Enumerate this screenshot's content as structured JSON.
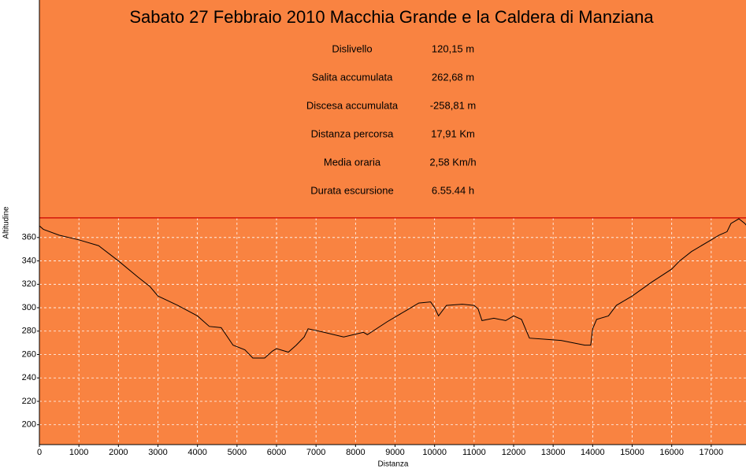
{
  "chart_data": {
    "type": "line",
    "title": "Sabato 27 Febbraio 2010 Macchia Grande e la Caldera di Manziana",
    "stats": [
      [
        "Dislivello",
        "120,15 m"
      ],
      [
        "Salita accumulata",
        "262,68 m"
      ],
      [
        "Discesa accumulata",
        "-258,81 m"
      ],
      [
        "Distanza percorsa",
        "17,91 Km"
      ],
      [
        "Media oraria",
        "2,58 Km/h"
      ],
      [
        "Durata escursione",
        "6.55.44 h"
      ]
    ],
    "xlabel": "Distanza",
    "ylabel": "Altitudine",
    "x": [
      0,
      100,
      500,
      1000,
      1500,
      2000,
      2500,
      2800,
      3000,
      3500,
      4000,
      4300,
      4600,
      4900,
      5200,
      5400,
      5700,
      5900,
      6000,
      6300,
      6500,
      6700,
      6800,
      7200,
      7700,
      8200,
      8300,
      8800,
      9300,
      9600,
      9900,
      10000,
      10100,
      10300,
      10700,
      11000,
      11100,
      11200,
      11500,
      11800,
      12000,
      12200,
      12400,
      12800,
      13200,
      13500,
      13800,
      13950,
      14000,
      14100,
      14400,
      14600,
      15000,
      15500,
      16000,
      16200,
      16500,
      17000,
      17200,
      17400,
      17500,
      17700,
      17850,
      17900
    ],
    "series": [
      {
        "name": "Altitudine",
        "color": "#000000",
        "values": [
          370,
          367,
          362,
          358,
          353,
          340,
          326,
          318,
          310,
          302,
          293,
          284,
          283,
          268,
          264,
          257,
          257,
          263,
          265,
          262,
          268,
          275,
          282,
          279,
          275,
          279,
          277,
          288,
          298,
          304,
          305,
          300,
          293,
          302,
          303,
          302,
          299,
          289,
          291,
          289,
          293,
          290,
          274,
          273,
          272,
          270,
          268,
          268,
          282,
          290,
          293,
          302,
          310,
          322,
          333,
          340,
          348,
          358,
          362,
          365,
          372,
          376,
          372,
          370
        ]
      }
    ],
    "max_line": 376.8,
    "max_line_color": "#cc0000",
    "xlim": [
      0,
      17880
    ],
    "ylim": [
      183,
      563
    ],
    "xticks": [
      0,
      1000,
      2000,
      3000,
      4000,
      5000,
      6000,
      7000,
      8000,
      9000,
      10000,
      11000,
      12000,
      13000,
      14000,
      15000,
      16000,
      17000
    ],
    "yticks": [
      200,
      220,
      240,
      260,
      280,
      300,
      320,
      340,
      360
    ],
    "grid": true,
    "background": "#f98341"
  }
}
